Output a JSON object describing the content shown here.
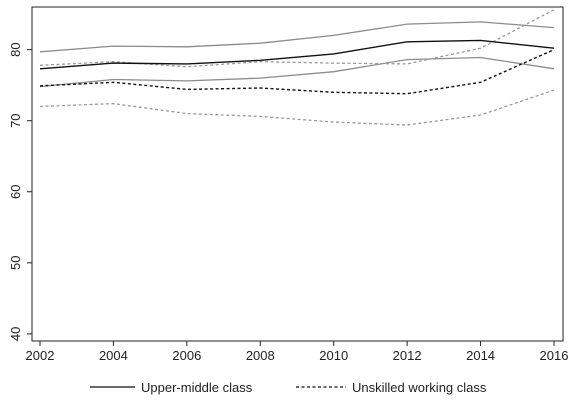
{
  "chart_data": {
    "type": "line",
    "x": [
      2002,
      2004,
      2006,
      2008,
      2010,
      2012,
      2014,
      2016
    ],
    "xlim": [
      2002,
      2016
    ],
    "ylim": [
      39,
      86
    ],
    "x_ticks": [
      2002,
      2004,
      2006,
      2008,
      2010,
      2012,
      2014,
      2016
    ],
    "y_ticks": [
      40,
      50,
      60,
      70,
      80
    ],
    "grid": false,
    "legend_position": "bottom",
    "series": [
      {
        "name": "Upper-middle class",
        "style": "solid",
        "color": "#111111",
        "values": [
          77.3,
          78.1,
          78.0,
          78.5,
          79.4,
          81.1,
          81.3,
          80.2
        ],
        "ci_color": "#8c8c8c",
        "ci_upper": [
          79.7,
          80.5,
          80.4,
          80.9,
          82.0,
          83.6,
          83.9,
          83.1
        ],
        "ci_lower": [
          74.8,
          75.8,
          75.6,
          76.0,
          76.9,
          78.6,
          78.9,
          77.3
        ]
      },
      {
        "name": "Unskilled working class",
        "style": "dashed",
        "color": "#111111",
        "values": [
          74.9,
          75.4,
          74.4,
          74.6,
          74.0,
          73.8,
          75.4,
          80.0
        ],
        "ci_color": "#9a9a9a",
        "ci_upper": [
          77.8,
          78.3,
          77.6,
          78.3,
          78.1,
          78.0,
          80.2,
          85.6
        ],
        "ci_lower": [
          72.0,
          72.4,
          71.0,
          70.6,
          69.8,
          69.4,
          70.8,
          74.3
        ]
      }
    ]
  }
}
